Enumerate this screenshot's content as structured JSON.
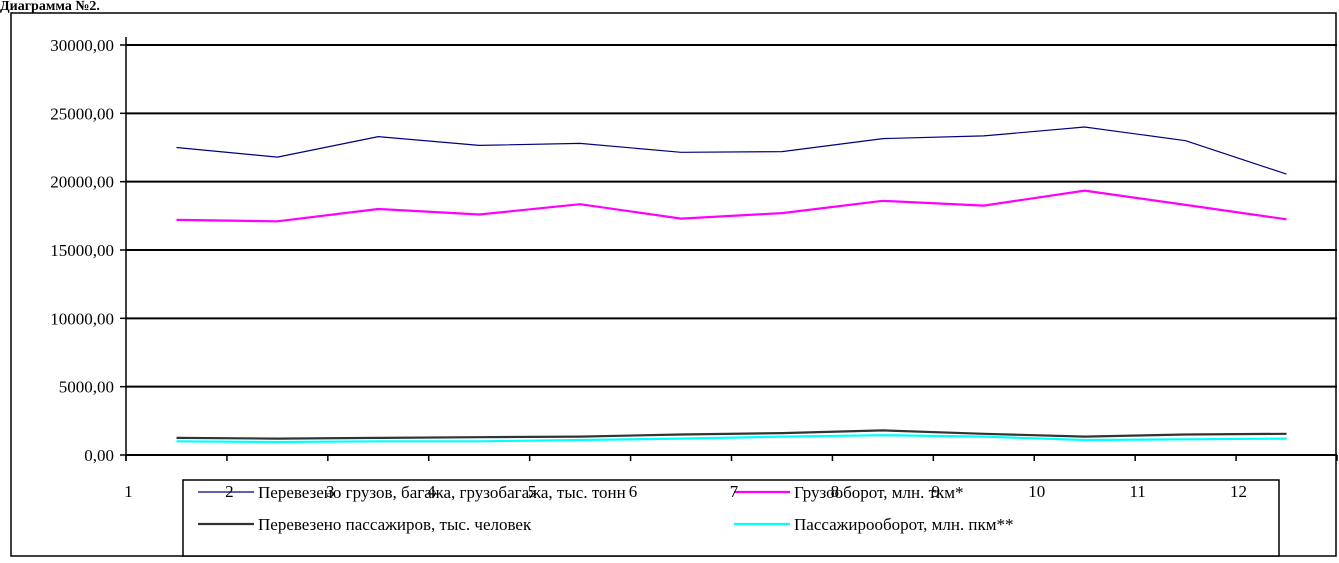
{
  "caption": "Диаграмма №2.",
  "chart_data": {
    "type": "line",
    "title": "",
    "xlabel": "",
    "ylabel": "",
    "x": [
      1,
      2,
      3,
      4,
      5,
      6,
      7,
      8,
      9,
      10,
      11,
      12
    ],
    "x_tick_labels": [
      "1",
      "2",
      "3",
      "4",
      "5",
      "6",
      "7",
      "8",
      "9",
      "10",
      "11",
      "12"
    ],
    "ylim": [
      0,
      30000
    ],
    "y_ticks": [
      0,
      5000,
      10000,
      15000,
      20000,
      25000,
      30000
    ],
    "y_tick_labels": [
      "0,00",
      "5000,00",
      "10000,00",
      "15000,00",
      "20000,00",
      "25000,00",
      "30000,00"
    ],
    "grid": "horizontal major gridlines",
    "legend_position": "bottom",
    "series": [
      {
        "name": "Перевезено грузов, багажа, грузобагажа, тыс. тонн",
        "color": "#000080",
        "values": [
          22500,
          21800,
          23300,
          22650,
          22800,
          22150,
          22200,
          23150,
          23350,
          24000,
          23000,
          20550
        ]
      },
      {
        "name": "Грузооборот, млн. ткм*",
        "color": "#ff00ff",
        "values": [
          17200,
          17100,
          18000,
          17600,
          18350,
          17300,
          17700,
          18600,
          18250,
          19350,
          18300,
          17250
        ]
      },
      {
        "name": "Перевезено пассажиров, тыс. человек",
        "color": "#333333",
        "values": [
          1250,
          1200,
          1250,
          1300,
          1350,
          1500,
          1600,
          1800,
          1550,
          1350,
          1500,
          1550
        ]
      },
      {
        "name": "Пассажирооборот, млн. пкм**",
        "color": "#00ffff",
        "values": [
          1000,
          950,
          1000,
          1000,
          1100,
          1200,
          1350,
          1450,
          1350,
          1100,
          1150,
          1200
        ]
      }
    ]
  }
}
